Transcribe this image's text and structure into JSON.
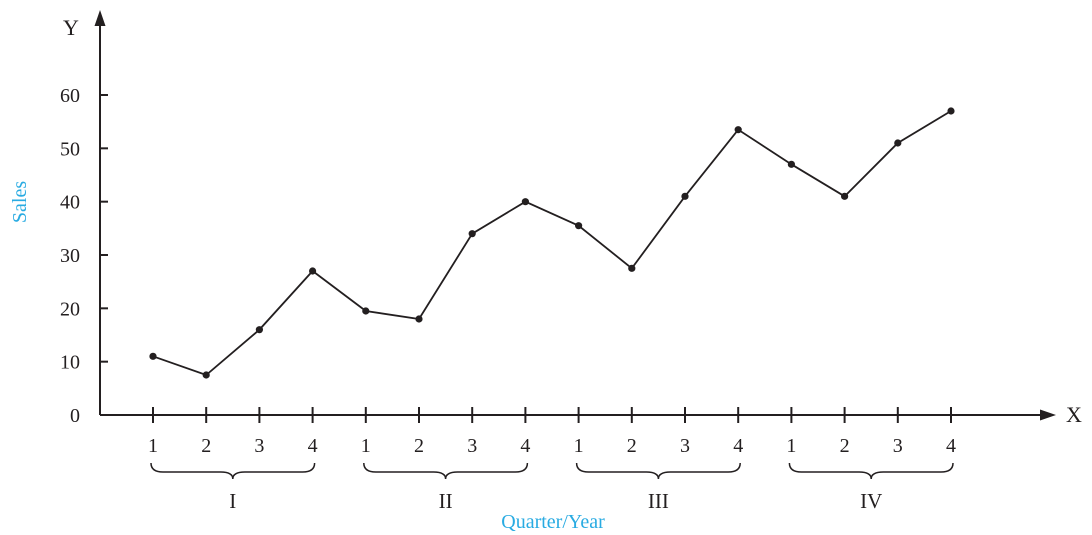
{
  "chart_data": {
    "type": "line",
    "xlabel": "Quarter/Year",
    "ylabel": "Sales",
    "x_axis_letter": "X",
    "y_axis_letter": "Y",
    "ylim": [
      0,
      60
    ],
    "y_ticks": [
      "0",
      "10",
      "20",
      "30",
      "40",
      "50",
      "60"
    ],
    "quarter_labels": [
      "1",
      "2",
      "3",
      "4",
      "1",
      "2",
      "3",
      "4",
      "1",
      "2",
      "3",
      "4",
      "1",
      "2",
      "3",
      "4"
    ],
    "year_groups": [
      "I",
      "II",
      "III",
      "IV"
    ],
    "series": [
      {
        "values": [
          11,
          7.5,
          16,
          27,
          19.5,
          18,
          34,
          40,
          35.5,
          27.5,
          41,
          53.5,
          47,
          41,
          51,
          57
        ]
      }
    ]
  }
}
